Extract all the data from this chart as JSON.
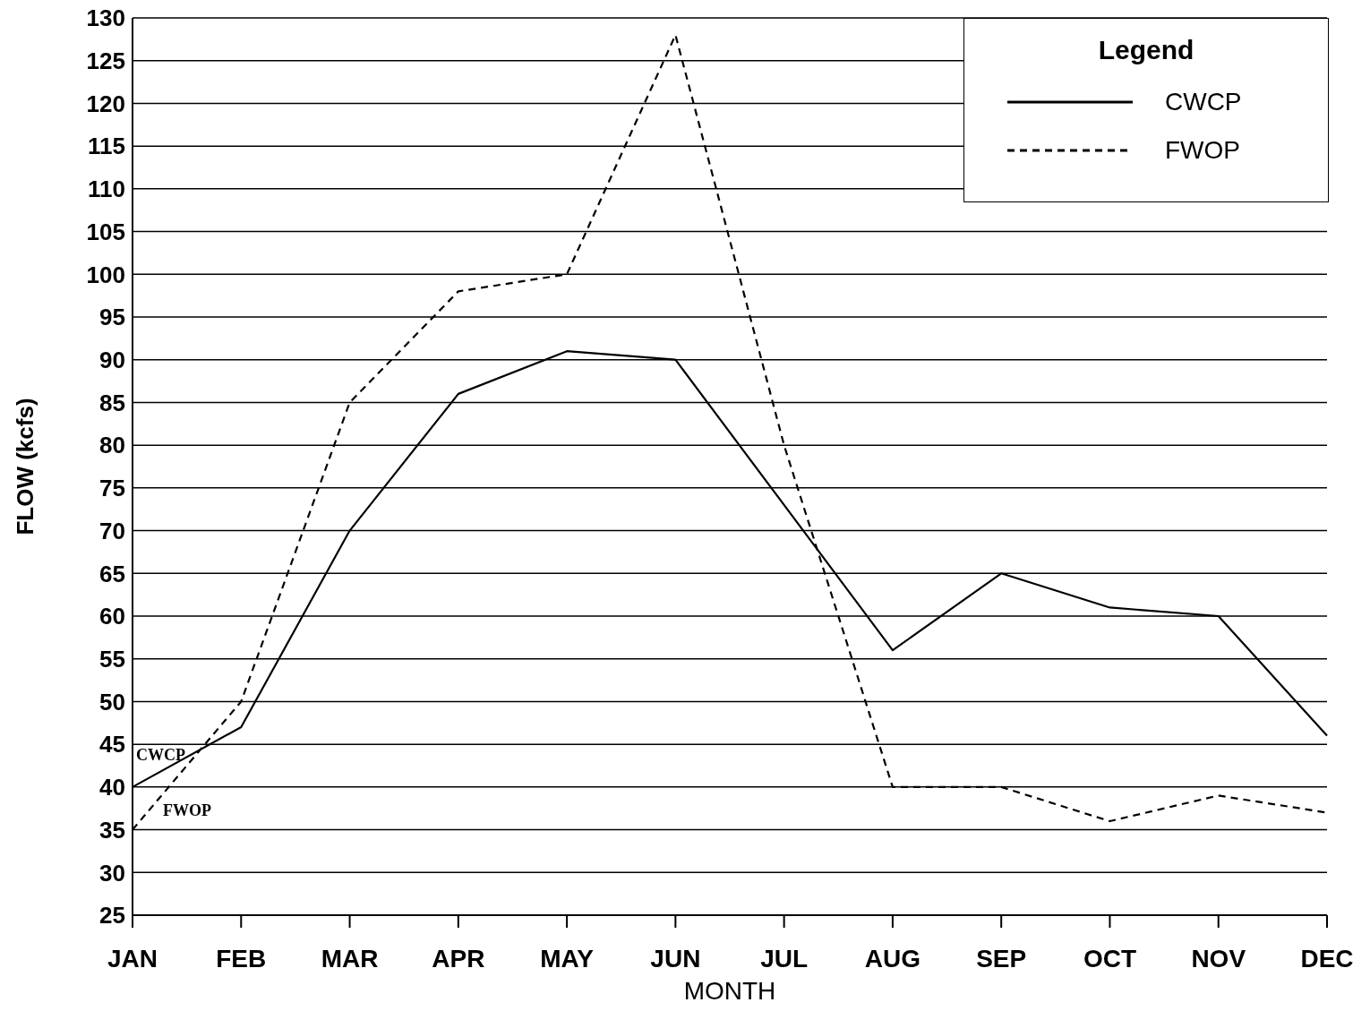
{
  "chart_data": {
    "type": "line",
    "xlabel": "MONTH",
    "ylabel": "FLOW (kcfs)",
    "legend_title": "Legend",
    "categories": [
      "JAN",
      "FEB",
      "MAR",
      "APR",
      "MAY",
      "JUN",
      "JUL",
      "AUG",
      "SEP",
      "OCT",
      "NOV",
      "DEC"
    ],
    "series": [
      {
        "name": "CWCP",
        "color": "#000000",
        "line_style": "solid",
        "values": [
          40,
          47,
          70,
          86,
          91,
          90,
          73,
          56,
          65,
          61,
          60,
          46
        ]
      },
      {
        "name": "FWOP",
        "color": "#000000",
        "line_style": "dashed",
        "values": [
          35,
          50,
          85,
          98,
          100,
          128,
          80,
          40,
          40,
          36,
          39,
          37
        ]
      }
    ],
    "ylim": [
      25,
      130
    ],
    "yticks": [
      25,
      30,
      35,
      40,
      45,
      50,
      55,
      60,
      65,
      70,
      75,
      80,
      85,
      90,
      95,
      100,
      105,
      110,
      115,
      120,
      125,
      130
    ],
    "grid": "y",
    "legend": "top right",
    "marker": "none",
    "annotations": [
      "CWCP",
      "FWOP"
    ]
  }
}
